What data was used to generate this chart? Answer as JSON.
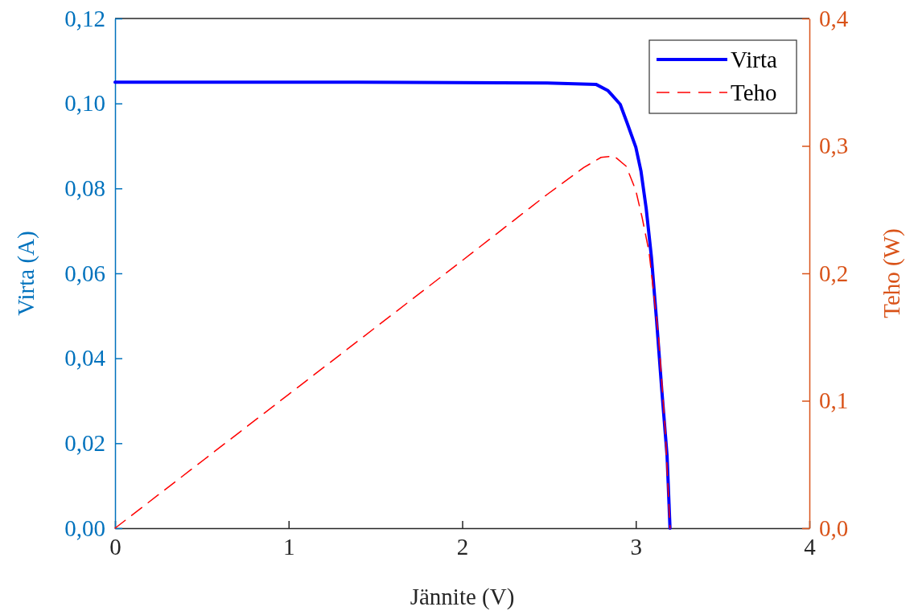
{
  "chart_data": {
    "type": "line",
    "xlabel": "Jännite (V)",
    "ylabel": "Virta (A)",
    "y2label": "Teho (W)",
    "xlim": [
      0,
      4
    ],
    "xticks": [
      0,
      1,
      2,
      3,
      4
    ],
    "ylim": [
      0,
      0.12
    ],
    "yticks": [
      {
        "value": 0,
        "label": "0,00"
      },
      {
        "value": 0.02,
        "label": "0,02"
      },
      {
        "value": 0.04,
        "label": "0,04"
      },
      {
        "value": 0.06,
        "label": "0,06"
      },
      {
        "value": 0.08,
        "label": "0,08"
      },
      {
        "value": 0.1,
        "label": "0,10"
      },
      {
        "value": 0.12,
        "label": "0,12"
      }
    ],
    "y2lim": [
      0,
      0.4
    ],
    "y2ticks": [
      {
        "value": 0,
        "label": "0,0"
      },
      {
        "value": 0.1,
        "label": "0,1"
      },
      {
        "value": 0.2,
        "label": "0,2"
      },
      {
        "value": 0.3,
        "label": "0,3"
      },
      {
        "value": 0.4,
        "label": "0,4"
      }
    ],
    "legend": "top right",
    "grid": false,
    "series": [
      {
        "name": "Virta",
        "color": "#0000ff",
        "line_style": "solid",
        "x": [
          0,
          1.4,
          2.49,
          2.77,
          2.84,
          2.91,
          2.95,
          3.0,
          3.03,
          3.06,
          3.09,
          3.12,
          3.15,
          3.18,
          3.197
        ],
        "values": [
          0.105,
          0.105,
          0.1048,
          0.1045,
          0.103,
          0.0998,
          0.0954,
          0.0897,
          0.084,
          0.0752,
          0.0638,
          0.0487,
          0.0323,
          0.0171,
          0
        ]
      },
      {
        "name": "Teho",
        "color": "#ff0000",
        "line_style": "dashed",
        "axis": "y2",
        "x": [
          0,
          1,
          2,
          2.49,
          2.7,
          2.8,
          2.875,
          2.945,
          3.0,
          3.036,
          3.076,
          3.13,
          3.169,
          3.197
        ],
        "values": [
          0,
          0.105,
          0.21,
          0.262,
          0.283,
          0.291,
          0.292,
          0.284,
          0.265,
          0.244,
          0.217,
          0.152,
          0.078,
          0
        ]
      }
    ]
  }
}
